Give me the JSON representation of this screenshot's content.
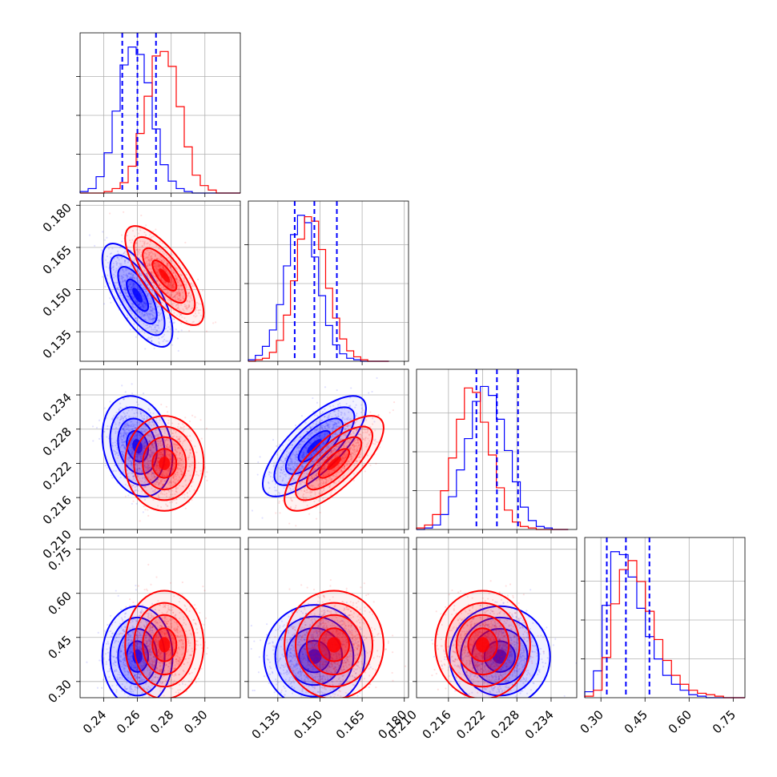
{
  "chart_data": {
    "type": "corner",
    "parameters": 4,
    "colors": {
      "series_a": "#0000ff",
      "series_b": "#ff0000"
    },
    "grid": true,
    "axes": [
      {
        "ticks": [
          "0.24",
          "0.26",
          "0.28",
          "0.30"
        ],
        "range": [
          0.226,
          0.321
        ]
      },
      {
        "ticks": [
          "0.135",
          "0.150",
          "0.165",
          "0.180"
        ],
        "range": [
          0.1245,
          0.1815
        ]
      },
      {
        "ticks": [
          "0.210",
          "0.216",
          "0.222",
          "0.228",
          "0.234"
        ],
        "range": [
          0.2104,
          0.2385
        ]
      },
      {
        "ticks": [
          "0.30",
          "0.45",
          "0.60",
          "0.75"
        ],
        "range": [
          0.245,
          0.79
        ]
      }
    ],
    "series": [
      {
        "color": "#0000ff",
        "means": [
          0.26,
          0.148,
          0.225,
          0.385
        ],
        "sds": [
          0.0085,
          0.0075,
          0.0036,
          0.07
        ],
        "corr": [
          [
            0,
            1,
            -0.7
          ],
          [
            0,
            2,
            -0.2
          ],
          [
            1,
            2,
            0.75
          ]
        ],
        "quantiles": [
          [
            0.251,
            0.26,
            0.271
          ],
          [
            0.141,
            0.148,
            0.156
          ],
          [
            0.2209,
            0.2245,
            0.2282
          ],
          [
            0.32,
            0.385,
            0.465
          ]
        ]
      },
      {
        "color": "#ff0000",
        "means": [
          0.276,
          0.155,
          0.222,
          0.425
        ],
        "sds": [
          0.0095,
          0.0072,
          0.0034,
          0.075
        ],
        "corr": [
          [
            0,
            1,
            -0.75
          ],
          [
            1,
            2,
            0.75
          ]
        ],
        "quantiles": null
      }
    ],
    "histograms": [
      {
        "bins": [
          0.226,
          0.23075,
          0.2355,
          0.24025,
          0.245,
          0.24975,
          0.2545,
          0.25925,
          0.264,
          0.26875,
          0.2735,
          0.27825,
          0.283,
          0.28775,
          0.2925,
          0.29725,
          0.302,
          0.30675,
          0.3115,
          0.31625,
          0.321
        ],
        "series_a": [
          0.01,
          0.03,
          0.11,
          0.27,
          0.55,
          0.86,
          0.98,
          0.93,
          0.74,
          0.43,
          0.19,
          0.08,
          0.03,
          0.01,
          0.0,
          0.0,
          0.0,
          0.0,
          0.0,
          0.0
        ],
        "series_b": [
          0.0,
          0.0,
          0.0,
          0.01,
          0.03,
          0.07,
          0.18,
          0.4,
          0.65,
          0.92,
          0.95,
          0.85,
          0.58,
          0.31,
          0.12,
          0.05,
          0.02,
          0.0,
          0.0,
          0.0
        ]
      },
      {
        "bins": [
          0.1245,
          0.127,
          0.1295,
          0.132,
          0.1345,
          0.137,
          0.1395,
          0.142,
          0.1445,
          0.147,
          0.1495,
          0.152,
          0.1545,
          0.157,
          0.1595,
          0.162,
          0.1645,
          0.167,
          0.1695,
          0.172,
          0.1745
        ],
        "series_a": [
          0.01,
          0.04,
          0.1,
          0.21,
          0.38,
          0.64,
          0.85,
          0.98,
          0.93,
          0.7,
          0.44,
          0.24,
          0.11,
          0.05,
          0.02,
          0.01,
          0.0,
          0.0,
          0.0,
          0.0
        ],
        "series_b": [
          0.0,
          0.01,
          0.02,
          0.06,
          0.14,
          0.31,
          0.54,
          0.82,
          0.97,
          0.94,
          0.75,
          0.49,
          0.29,
          0.15,
          0.07,
          0.03,
          0.01,
          0.0,
          0.0,
          0.0
        ]
      },
      {
        "bins": [
          0.2104,
          0.2118,
          0.2132,
          0.2146,
          0.216,
          0.2174,
          0.2188,
          0.2202,
          0.2216,
          0.223,
          0.2244,
          0.2258,
          0.2272,
          0.2286,
          0.23,
          0.2314,
          0.2328,
          0.2342,
          0.2356,
          0.237
        ],
        "series_a": [
          0.0,
          0.01,
          0.03,
          0.1,
          0.22,
          0.4,
          0.61,
          0.86,
          0.96,
          0.9,
          0.74,
          0.53,
          0.32,
          0.15,
          0.06,
          0.02,
          0.01,
          0.0,
          0.0
        ],
        "series_b": [
          0.01,
          0.03,
          0.1,
          0.26,
          0.48,
          0.74,
          0.95,
          0.92,
          0.72,
          0.5,
          0.28,
          0.13,
          0.05,
          0.02,
          0.01,
          0.0,
          0.0,
          0.0,
          0.0
        ]
      },
      {
        "bins": [
          0.245,
          0.2745,
          0.304,
          0.3335,
          0.363,
          0.3925,
          0.422,
          0.4515,
          0.481,
          0.5105,
          0.54,
          0.5695,
          0.599,
          0.6285,
          0.658,
          0.6875,
          0.717,
          0.7465,
          0.776,
          0.79
        ],
        "series_a": [
          0.04,
          0.18,
          0.62,
          0.98,
          0.96,
          0.81,
          0.6,
          0.41,
          0.26,
          0.15,
          0.09,
          0.05,
          0.02,
          0.01,
          0.0,
          0.0,
          0.0,
          0.0,
          0.0
        ],
        "series_b": [
          0.01,
          0.05,
          0.27,
          0.63,
          0.86,
          0.92,
          0.78,
          0.58,
          0.39,
          0.25,
          0.15,
          0.09,
          0.05,
          0.03,
          0.02,
          0.01,
          0.0,
          0.0,
          0.0
        ]
      }
    ]
  }
}
